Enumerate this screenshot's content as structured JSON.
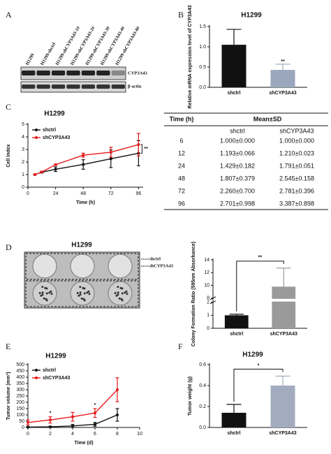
{
  "panel_labels": [
    "A",
    "B",
    "C",
    "D",
    "E",
    "F"
  ],
  "blot": {
    "lanes": [
      "H1299",
      "H1299-shctrl",
      "H1299-shCYP3A43-1#",
      "H1299-shCYP3A43-2#",
      "H1299-shCYP3A43-3#",
      "H1299-shCYP3A43-4#",
      "H1299-shCYP3A43-8#"
    ],
    "bands": [
      "CYP3A43",
      "β-actin"
    ]
  },
  "table": {
    "header": [
      "Time (h)",
      "Mean±SD"
    ],
    "subheader": [
      "shctrl",
      "shCYP3A43"
    ],
    "rows": [
      [
        "6",
        "1.000±0.000",
        "1.000±0.000"
      ],
      [
        "12",
        "1.193±0.066",
        "1.210±0.023"
      ],
      [
        "24",
        "1.429±0.182",
        "1.791±0.051"
      ],
      [
        "48",
        "1.807±0.379",
        "2.545±0.158"
      ],
      [
        "72",
        "2.260±0.700",
        "2.781±0.396"
      ],
      [
        "96",
        "2.701±0.998",
        "3.387±0.898"
      ]
    ]
  },
  "colony": {
    "title": "H1299",
    "labels": [
      "shctrl",
      "shCYP3A43"
    ]
  },
  "chart_data": [
    {
      "type": "bar",
      "title": "H1299",
      "y_label": "Relative mRNA expression level of CYP3A43",
      "categories": [
        "shctrl",
        "shCYP3A43"
      ],
      "values": [
        1.05,
        0.43
      ],
      "errors": [
        0.38,
        0.14
      ],
      "colors": [
        "#111111",
        "#9aa7bd"
      ],
      "ylim": [
        0,
        1.5
      ],
      "yticks": [
        {
          "value": 0,
          "label": "0.0"
        },
        {
          "value": 0.5,
          "label": "0.5"
        },
        {
          "value": 1,
          "label": "1.0"
        },
        {
          "value": 1.5,
          "label": "1.5"
        }
      ],
      "annotation": "**",
      "bracket": false
    },
    {
      "type": "line",
      "title": "H1299",
      "x_label": "Time (h)",
      "y_label": "Cell Index",
      "x": [
        6,
        12,
        24,
        48,
        72,
        96
      ],
      "series": [
        {
          "name": "shctrl",
          "color": "#111111",
          "values": [
            1.0,
            1.193,
            1.429,
            1.807,
            2.26,
            2.701
          ],
          "errors": [
            0.0,
            0.066,
            0.182,
            0.379,
            0.7,
            0.998
          ]
        },
        {
          "name": "shCYP3A43",
          "color": "#e41a1c",
          "values": [
            1.0,
            1.21,
            1.791,
            2.545,
            2.781,
            3.387
          ],
          "errors": [
            0.0,
            0.023,
            0.051,
            0.158,
            0.396,
            0.898
          ]
        }
      ],
      "xlim": [
        0,
        100
      ],
      "xticks": [
        0,
        24,
        48,
        72,
        96
      ],
      "ylim": [
        0,
        5
      ],
      "yticks": [
        0,
        1,
        2,
        3,
        4,
        5
      ],
      "legend": "upper left",
      "annotations": [
        {
          "text": "**",
          "x": 96,
          "bracket": true
        }
      ]
    },
    {
      "type": "bar",
      "y_label": "Colony Formation Ratio (595nm Absorbance)",
      "categories": [
        "shctrl",
        "shCYP3A43"
      ],
      "values": [
        1.0,
        9.8
      ],
      "errors": [
        0.08,
        2.9
      ],
      "colors": [
        "#111111",
        "#9a9a9a"
      ],
      "ylim": [
        0,
        14
      ],
      "ybreak": [
        2,
        8
      ],
      "yticks": [
        0,
        1,
        2,
        8,
        10,
        12,
        14
      ],
      "annotation": "**",
      "bracket": true
    },
    {
      "type": "line",
      "title": "H1299",
      "x_label": "Time (d)",
      "y_label": "Tumor volume (mm³)",
      "x": [
        0,
        2,
        4,
        6,
        8
      ],
      "series": [
        {
          "name": "shctrl",
          "color": "#111111",
          "values": [
            3,
            5,
            12,
            25,
            100
          ],
          "errors": [
            3,
            5,
            12,
            15,
            50
          ]
        },
        {
          "name": "shCYP3A43",
          "color": "#e41a1c",
          "values": [
            40,
            60,
            85,
            115,
            300
          ],
          "errors": [
            20,
            25,
            35,
            35,
            95
          ]
        }
      ],
      "xlim": [
        0,
        10
      ],
      "xticks": [
        0,
        2,
        4,
        6,
        8,
        10
      ],
      "ylim": [
        0,
        500
      ],
      "yticks": [
        0,
        50,
        100,
        150,
        200,
        250,
        300,
        350,
        400,
        450,
        500
      ],
      "legend": "upper left",
      "annotations": [
        {
          "text": "*",
          "x": 2,
          "bracket": false
        },
        {
          "text": "*",
          "x": 6,
          "bracket": false
        }
      ]
    },
    {
      "type": "bar",
      "title": "H1299",
      "y_label": "Tumor weight (g)",
      "categories": [
        "shctrl",
        "shCYP3A43"
      ],
      "values": [
        0.14,
        0.4
      ],
      "errors": [
        0.08,
        0.09
      ],
      "colors": [
        "#111111",
        "#a3acbf"
      ],
      "ylim": [
        0,
        0.6
      ],
      "yticks": [
        {
          "value": 0,
          "label": "0.0"
        },
        {
          "value": 0.2,
          "label": "0.2"
        },
        {
          "value": 0.4,
          "label": "0.4"
        },
        {
          "value": 0.6,
          "label": "0.6"
        }
      ],
      "annotation": "*",
      "bracket": true
    }
  ]
}
